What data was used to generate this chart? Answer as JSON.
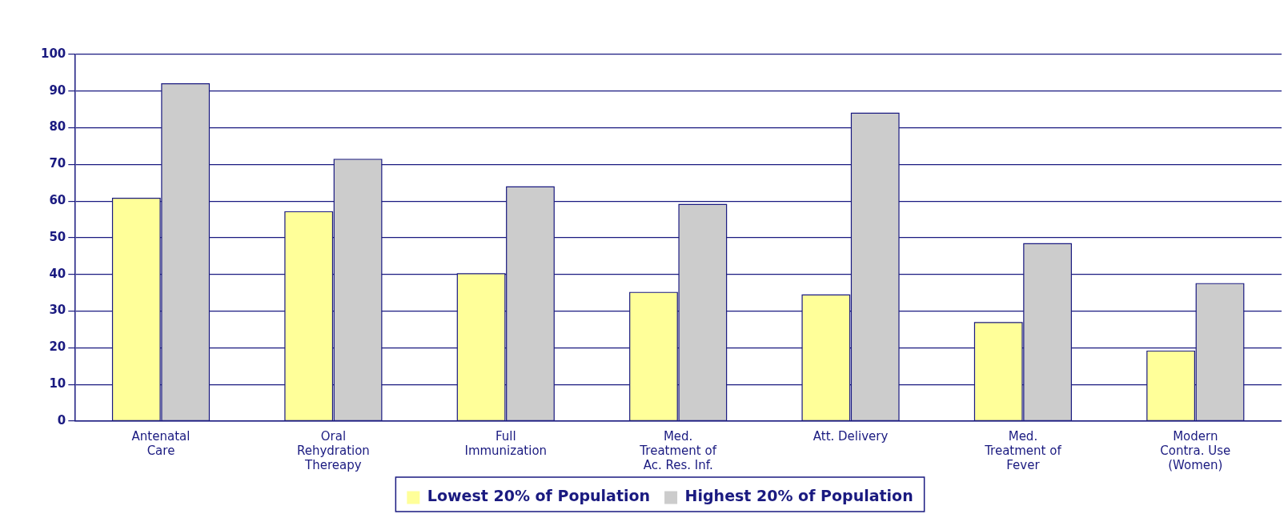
{
  "chart_data": {
    "type": "bar",
    "categories": [
      "Antenatal Care",
      "Oral Rehydration Thereapy",
      "Full Immunization",
      "Med. Treatment of Ac. Res. Inf.",
      "Att. Delivery",
      "Med. Treatment of Fever",
      "Modern Contra. Use (Women)"
    ],
    "series": [
      {
        "name": "Lowest 20% of Population",
        "color": "#ffff99",
        "values": [
          60.8,
          57.1,
          40.2,
          35.1,
          34.4,
          26.9,
          19.1
        ]
      },
      {
        "name": "Highest 20% of Population",
        "color": "#cccccc",
        "values": [
          92,
          71.4,
          63.9,
          59.1,
          84,
          48.4,
          37.5
        ]
      }
    ],
    "ylim": [
      0,
      100
    ],
    "yticks": [
      0,
      10,
      20,
      30,
      40,
      50,
      60,
      70,
      80,
      90,
      100
    ],
    "grid": "y",
    "legend": "bottom"
  }
}
